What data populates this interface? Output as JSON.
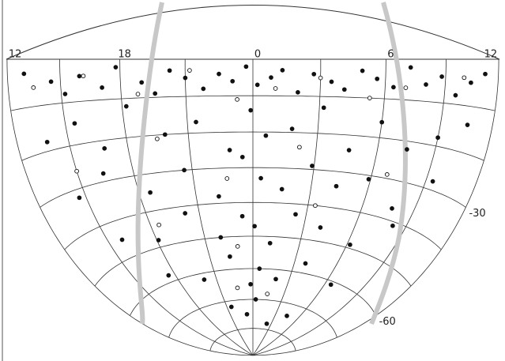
{
  "chart_data": {
    "type": "sky-scatter",
    "xlim": [
      12,
      36
    ],
    "ylim": [
      -90,
      0
    ],
    "xticks": [
      12,
      18,
      {
        "value": 24,
        "label": "0"
      },
      {
        "value": 30,
        "label": "6"
      },
      {
        "value": 36,
        "label": "12"
      }
    ],
    "xgrid": [
      15,
      21,
      27,
      33
    ],
    "yticks": [
      -30,
      -60
    ],
    "ygrid": [
      -10,
      -20,
      -40,
      -50,
      -70,
      -80
    ],
    "series": [
      {
        "color": "#111",
        "filled": true,
        "x": [
          13,
          14.5,
          15.2,
          16,
          17.1,
          17.8,
          19,
          19.6,
          20.3,
          21,
          21.8,
          22.5,
          23.1,
          23.7,
          24.2,
          24.8,
          25.3,
          26,
          26.7,
          27.5,
          28.1,
          28.9,
          29.6,
          30.4,
          31.2,
          32,
          32.8,
          33.6,
          34.4,
          35.2,
          13.8,
          15.5,
          16.8,
          18.2,
          19.9,
          21.4,
          22.9,
          23.9,
          24.6,
          25.8,
          27.2,
          28.6,
          30,
          31.5,
          33,
          34.5,
          14.6,
          16.4,
          18.6,
          20.6,
          22.2,
          23.5,
          24.4,
          25.5,
          26.9,
          28.3,
          29.9,
          31.7,
          33.4,
          15.9,
          18.1,
          20.2,
          22,
          23.4,
          24.1,
          25.1,
          26.4,
          28,
          30.2,
          32.2,
          17.5,
          20,
          22.4,
          23.8,
          24.5,
          25.9,
          27.8,
          30.5,
          21.5,
          23.2,
          24.3,
          26.3,
          28.5
        ],
        "y": [
          -3,
          -5,
          -8,
          -4,
          -7,
          -2,
          -6,
          -9,
          -3,
          -5,
          -8,
          -4,
          -6,
          -2,
          -7,
          -5,
          -3,
          -9,
          -4,
          -6,
          -8,
          -3,
          -5,
          -7,
          -2,
          -6,
          -4,
          -8,
          -5,
          -3,
          -18,
          -15,
          -22,
          -12,
          -20,
          -17,
          -25,
          -14,
          -21,
          -19,
          -13,
          -24,
          -16,
          -22,
          -18,
          -14,
          -32,
          -28,
          -35,
          -30,
          -38,
          -27,
          -33,
          -36,
          -29,
          -34,
          -31,
          -37,
          -28,
          -45,
          -48,
          -42,
          -50,
          -44,
          -47,
          -52,
          -43,
          -46,
          -49,
          -41,
          -58,
          -62,
          -56,
          -65,
          -60,
          -63,
          -57,
          -61,
          -72,
          -75,
          -70,
          -78,
          -74
        ]
      },
      {
        "color": "#111",
        "filled": false,
        "x": [
          13.5,
          16.2,
          18.8,
          21.2,
          23.3,
          25,
          27,
          29.3,
          31,
          34,
          15,
          19.5,
          22.7,
          26.2,
          30.8,
          18.5,
          23,
          27.4,
          22.6,
          25.4
        ],
        "y": [
          -6,
          -4,
          -9,
          -3,
          -11,
          -8,
          -5,
          -10,
          -7,
          -4,
          -26,
          -21,
          -33,
          -24,
          -29,
          -44,
          -53,
          -40,
          -66,
          -68
        ]
      }
    ]
  }
}
